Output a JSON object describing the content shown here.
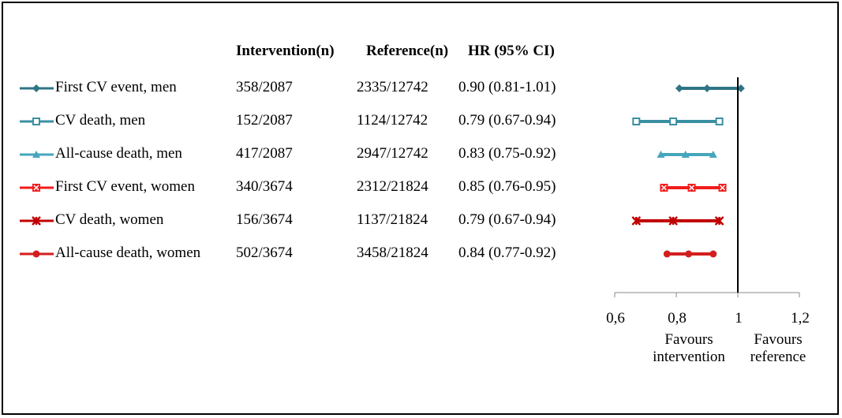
{
  "chart_data": {
    "type": "forest",
    "headers": {
      "intervention": "Intervention(n)",
      "reference": "Reference(n)",
      "hr": "HR (95% CI)"
    },
    "rows": [
      {
        "label": "First CV event, men",
        "intervention": "358/2087",
        "reference": "2335/12742",
        "hr_text": "0.90 (0.81-1.01)",
        "hr": 0.9,
        "lo": 0.81,
        "hi": 1.01,
        "color": "#2E7585",
        "marker": "diamond"
      },
      {
        "label": "CV death, men",
        "intervention": "152/2087",
        "reference": "1124/12742",
        "hr_text": "0.79 (0.67-0.94)",
        "hr": 0.79,
        "lo": 0.67,
        "hi": 0.94,
        "color": "#3A8FA3",
        "marker": "square"
      },
      {
        "label": "All-cause death, men",
        "intervention": "417/2087",
        "reference": "2947/12742",
        "hr_text": "0.83 (0.75-0.92)",
        "hr": 0.83,
        "lo": 0.75,
        "hi": 0.92,
        "color": "#45A6BC",
        "marker": "triangle"
      },
      {
        "label": "First CV event, women",
        "intervention": "340/3674",
        "reference": "2312/21824",
        "hr_text": "0.85 (0.76-0.95)",
        "hr": 0.85,
        "lo": 0.76,
        "hi": 0.95,
        "color": "#F21C1C",
        "marker": "x-square"
      },
      {
        "label": "CV death, women",
        "intervention": "156/3674",
        "reference": "1137/21824",
        "hr_text": "0.79 (0.67-0.94)",
        "hr": 0.79,
        "lo": 0.67,
        "hi": 0.94,
        "color": "#C00000",
        "marker": "star"
      },
      {
        "label": "All-cause death, women",
        "intervention": "502/3674",
        "reference": "3458/21824",
        "hr_text": "0.84 (0.77-0.92)",
        "hr": 0.84,
        "lo": 0.77,
        "hi": 0.92,
        "color": "#D41E1E",
        "marker": "circle"
      }
    ],
    "x_axis": {
      "ticks": [
        "0,6",
        "0,8",
        "1",
        "1,2"
      ],
      "tick_values": [
        0.6,
        0.8,
        1.0,
        1.2
      ],
      "xlim": [
        0.6,
        1.2
      ],
      "reference_line": 1.0
    },
    "annotations": {
      "left": [
        "Favours",
        "intervention"
      ],
      "right": [
        "Favours",
        "reference"
      ]
    }
  }
}
